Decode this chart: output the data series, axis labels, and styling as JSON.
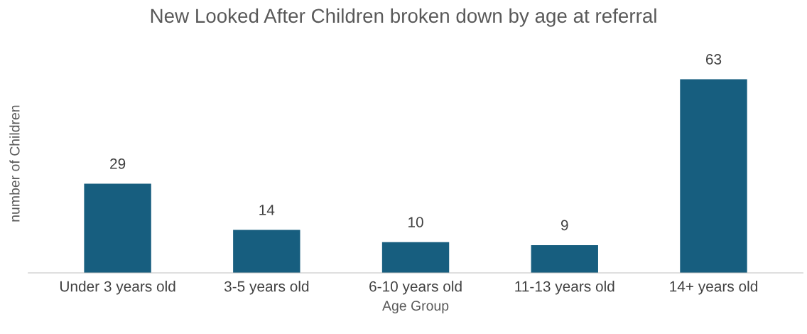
{
  "chart_data": {
    "type": "bar",
    "title": "New Looked After Children broken down by age at referral",
    "xlabel": "Age Group",
    "ylabel": "number of Children",
    "categories": [
      "Under 3 years old",
      "3-5 years old",
      "6-10 years old",
      "11-13 years old",
      "14+ years old"
    ],
    "values": [
      29,
      14,
      10,
      9,
      63
    ],
    "color": "#175e7f",
    "data_labels": true
  }
}
